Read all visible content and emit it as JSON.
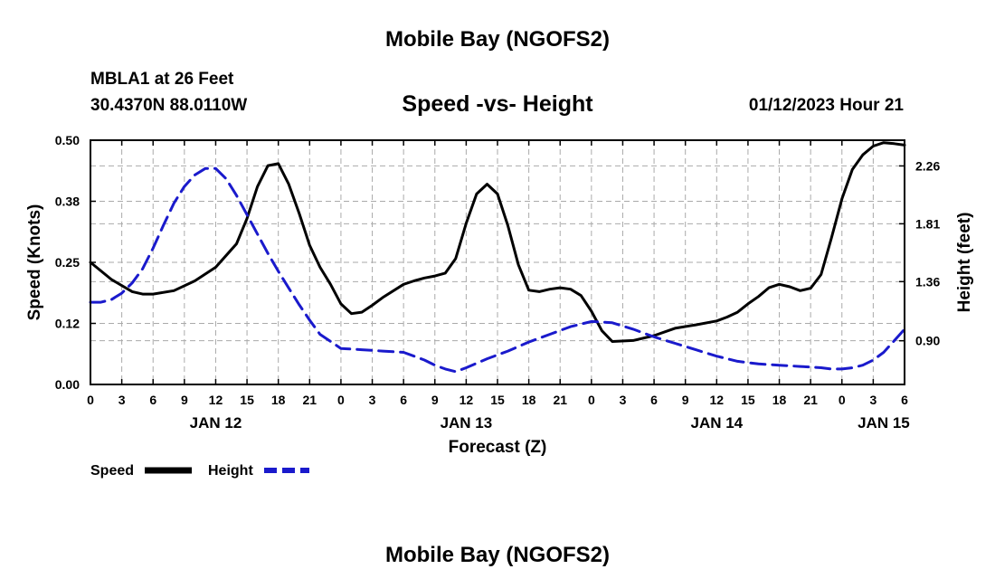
{
  "header": {
    "title": "Mobile Bay (NGOFS2)",
    "station": "MBLA1 at 26 Feet",
    "coords": "30.4370N  88.0110W",
    "subtitle": "Speed -vs- Height",
    "datetime": "01/12/2023 Hour 21"
  },
  "footer": {
    "title": "Mobile Bay (NGOFS2)"
  },
  "colors": {
    "speed": "#000000",
    "height": "#1a1acc",
    "grid": "#aaaaaa"
  },
  "chart_data": {
    "type": "line",
    "title": "Speed -vs- Height",
    "xlabel": "Forecast (Z)",
    "ylabel": "Speed (Knots)",
    "y2label": "Height (feet)",
    "x_unit": "hours since 2023-01-12 00Z",
    "xlim": [
      0,
      78
    ],
    "ylim": [
      0,
      0.5
    ],
    "y2lim": [
      0.56,
      2.46
    ],
    "x_ticks": [
      0,
      3,
      6,
      9,
      12,
      15,
      18,
      21,
      24,
      27,
      30,
      33,
      36,
      39,
      42,
      45,
      48,
      51,
      54,
      57,
      60,
      63,
      66,
      69,
      72,
      75,
      78
    ],
    "x_tick_labels": [
      "0",
      "3",
      "6",
      "9",
      "12",
      "15",
      "18",
      "21",
      "0",
      "3",
      "6",
      "9",
      "12",
      "15",
      "18",
      "21",
      "0",
      "3",
      "6",
      "9",
      "12",
      "15",
      "18",
      "21",
      "0",
      "3",
      "6"
    ],
    "y_ticks": [
      0.0,
      0.125,
      0.25,
      0.375,
      0.5
    ],
    "y_tick_labels": [
      "0.00",
      "0.12",
      "0.25",
      "0.38",
      "0.50"
    ],
    "y2_ticks": [
      0.9,
      1.36,
      1.81,
      2.26
    ],
    "y2_tick_labels": [
      "0.90",
      "1.36",
      "1.81",
      "2.26"
    ],
    "date_labels": [
      {
        "x": 12,
        "label": "JAN 12"
      },
      {
        "x": 36,
        "label": "JAN 13"
      },
      {
        "x": 60,
        "label": "JAN 14"
      },
      {
        "x": 76,
        "label": "JAN 15"
      }
    ],
    "grid": true,
    "series": [
      {
        "name": "Speed",
        "axis": "left",
        "style": "solid",
        "x": [
          0,
          2,
          4,
          5,
          6,
          8,
          10,
          12,
          14,
          15,
          16,
          17,
          18,
          19,
          20,
          21,
          22,
          23,
          24,
          25,
          26,
          27,
          28,
          30,
          31,
          32,
          33,
          34,
          35,
          36,
          37,
          38,
          39,
          40,
          41,
          42,
          43,
          44,
          45,
          46,
          47,
          48,
          49,
          50,
          52,
          54,
          56,
          58,
          60,
          61,
          62,
          63,
          64,
          65,
          66,
          67,
          68,
          69,
          70,
          71,
          72,
          73,
          74,
          75,
          76,
          77,
          78
        ],
        "values": [
          0.25,
          0.215,
          0.19,
          0.185,
          0.185,
          0.192,
          0.212,
          0.24,
          0.288,
          0.34,
          0.405,
          0.448,
          0.452,
          0.41,
          0.35,
          0.285,
          0.24,
          0.205,
          0.165,
          0.145,
          0.148,
          0.162,
          0.178,
          0.205,
          0.212,
          0.218,
          0.222,
          0.228,
          0.258,
          0.33,
          0.39,
          0.41,
          0.39,
          0.325,
          0.245,
          0.193,
          0.19,
          0.195,
          0.198,
          0.195,
          0.182,
          0.15,
          0.11,
          0.088,
          0.09,
          0.1,
          0.115,
          0.122,
          0.13,
          0.138,
          0.148,
          0.165,
          0.18,
          0.198,
          0.205,
          0.2,
          0.192,
          0.197,
          0.225,
          0.3,
          0.38,
          0.44,
          0.47,
          0.488,
          0.495,
          0.493,
          0.49
        ]
      },
      {
        "name": "Height",
        "axis": "right",
        "style": "dashed",
        "x": [
          0,
          1,
          2,
          3,
          4,
          5,
          6,
          7,
          8,
          9,
          10,
          11,
          12,
          13,
          14,
          15,
          16,
          17,
          18,
          19,
          20,
          21,
          22,
          24,
          26,
          28,
          30,
          31,
          32,
          33,
          34,
          35,
          36,
          38,
          40,
          42,
          44,
          46,
          48,
          50,
          52,
          54,
          56,
          58,
          60,
          62,
          64,
          66,
          68,
          70,
          71,
          72,
          73,
          74,
          75,
          76,
          77,
          78
        ],
        "values": [
          1.2,
          1.2,
          1.22,
          1.27,
          1.35,
          1.46,
          1.62,
          1.8,
          1.97,
          2.1,
          2.19,
          2.24,
          2.24,
          2.16,
          2.03,
          1.88,
          1.73,
          1.58,
          1.44,
          1.31,
          1.18,
          1.06,
          0.95,
          0.84,
          0.83,
          0.82,
          0.81,
          0.78,
          0.75,
          0.71,
          0.68,
          0.66,
          0.69,
          0.76,
          0.82,
          0.89,
          0.95,
          1.01,
          1.05,
          1.04,
          0.99,
          0.93,
          0.88,
          0.83,
          0.78,
          0.74,
          0.72,
          0.71,
          0.7,
          0.69,
          0.68,
          0.68,
          0.69,
          0.71,
          0.75,
          0.81,
          0.9,
          0.99
        ]
      }
    ],
    "legend": {
      "position": "bottom-left",
      "items": [
        {
          "label": "Speed",
          "style": "solid"
        },
        {
          "label": "Height",
          "style": "dashed"
        }
      ]
    }
  }
}
